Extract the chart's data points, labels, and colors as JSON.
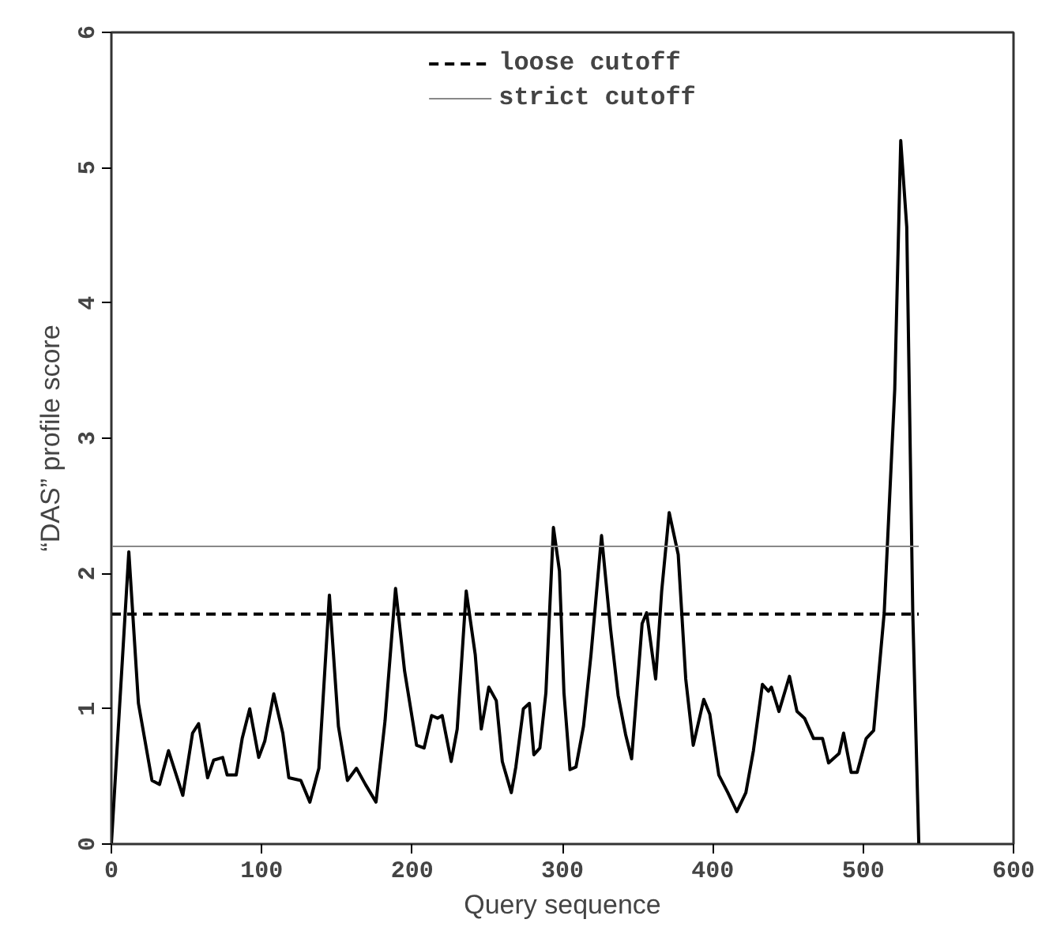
{
  "chart_data": {
    "type": "line",
    "xlabel": "Query sequence",
    "ylabel": "“DAS” profile score",
    "xlim": [
      0,
      600
    ],
    "ylim": [
      0,
      6
    ],
    "xticks": [
      0,
      100,
      200,
      300,
      400,
      500,
      600
    ],
    "yticks": [
      0,
      1,
      2,
      3,
      4,
      5,
      6
    ],
    "grid": false,
    "legend": "top",
    "line_style": "solid",
    "marker": "none",
    "ref_lines": [
      {
        "axis": "y",
        "value": 1.7,
        "label": "loose cutoff",
        "color": "#000000",
        "line_style": "dashed"
      },
      {
        "axis": "y",
        "value": 2.2,
        "label": "strict cutoff",
        "color": "#888888",
        "line_style": "solid"
      }
    ],
    "series": [
      {
        "color": "#000000",
        "x": [
          0,
          11.6,
          18,
          27,
          32,
          38,
          47.5,
          54,
          58,
          64,
          68,
          74,
          77,
          83,
          87,
          92,
          98,
          102,
          108,
          114,
          118,
          126,
          132,
          138,
          145,
          151,
          157,
          163,
          169,
          176,
          182,
          189,
          195,
          203,
          208,
          213,
          217,
          220,
          226,
          230,
          236,
          242,
          246,
          251,
          256,
          260,
          266,
          269,
          274,
          278,
          281,
          285,
          289,
          294,
          298,
          301,
          305,
          309,
          314,
          319,
          326,
          332,
          337,
          342,
          346,
          353,
          356,
          362,
          366,
          371,
          377,
          382,
          387,
          394,
          398,
          404,
          410,
          416,
          422,
          427,
          433,
          437,
          439,
          444,
          451,
          456,
          461,
          467,
          473,
          477,
          484,
          487,
          492,
          496,
          502,
          507,
          514,
          521,
          525,
          529,
          533,
          537
        ],
        "values": [
          0,
          2.16,
          1.04,
          0.47,
          0.44,
          0.69,
          0.36,
          0.82,
          0.89,
          0.49,
          0.62,
          0.64,
          0.51,
          0.51,
          0.78,
          1.0,
          0.64,
          0.76,
          1.11,
          0.82,
          0.49,
          0.47,
          0.31,
          0.56,
          1.84,
          0.87,
          0.47,
          0.56,
          0.44,
          0.31,
          0.91,
          1.89,
          1.28,
          0.73,
          0.71,
          0.95,
          0.93,
          0.95,
          0.61,
          0.85,
          1.87,
          1.4,
          0.85,
          1.16,
          1.06,
          0.61,
          0.38,
          0.57,
          1.0,
          1.04,
          0.66,
          0.71,
          1.12,
          2.34,
          2.02,
          1.12,
          0.55,
          0.57,
          0.87,
          1.4,
          2.28,
          1.59,
          1.1,
          0.81,
          0.63,
          1.63,
          1.71,
          1.22,
          1.87,
          2.45,
          2.14,
          1.22,
          0.73,
          1.07,
          0.96,
          0.51,
          0.38,
          0.24,
          0.38,
          0.69,
          1.18,
          1.13,
          1.16,
          0.98,
          1.24,
          0.98,
          0.93,
          0.78,
          0.78,
          0.6,
          0.67,
          0.82,
          0.53,
          0.53,
          0.78,
          0.84,
          1.71,
          3.36,
          5.2,
          4.56,
          1.71,
          0
        ]
      }
    ]
  }
}
